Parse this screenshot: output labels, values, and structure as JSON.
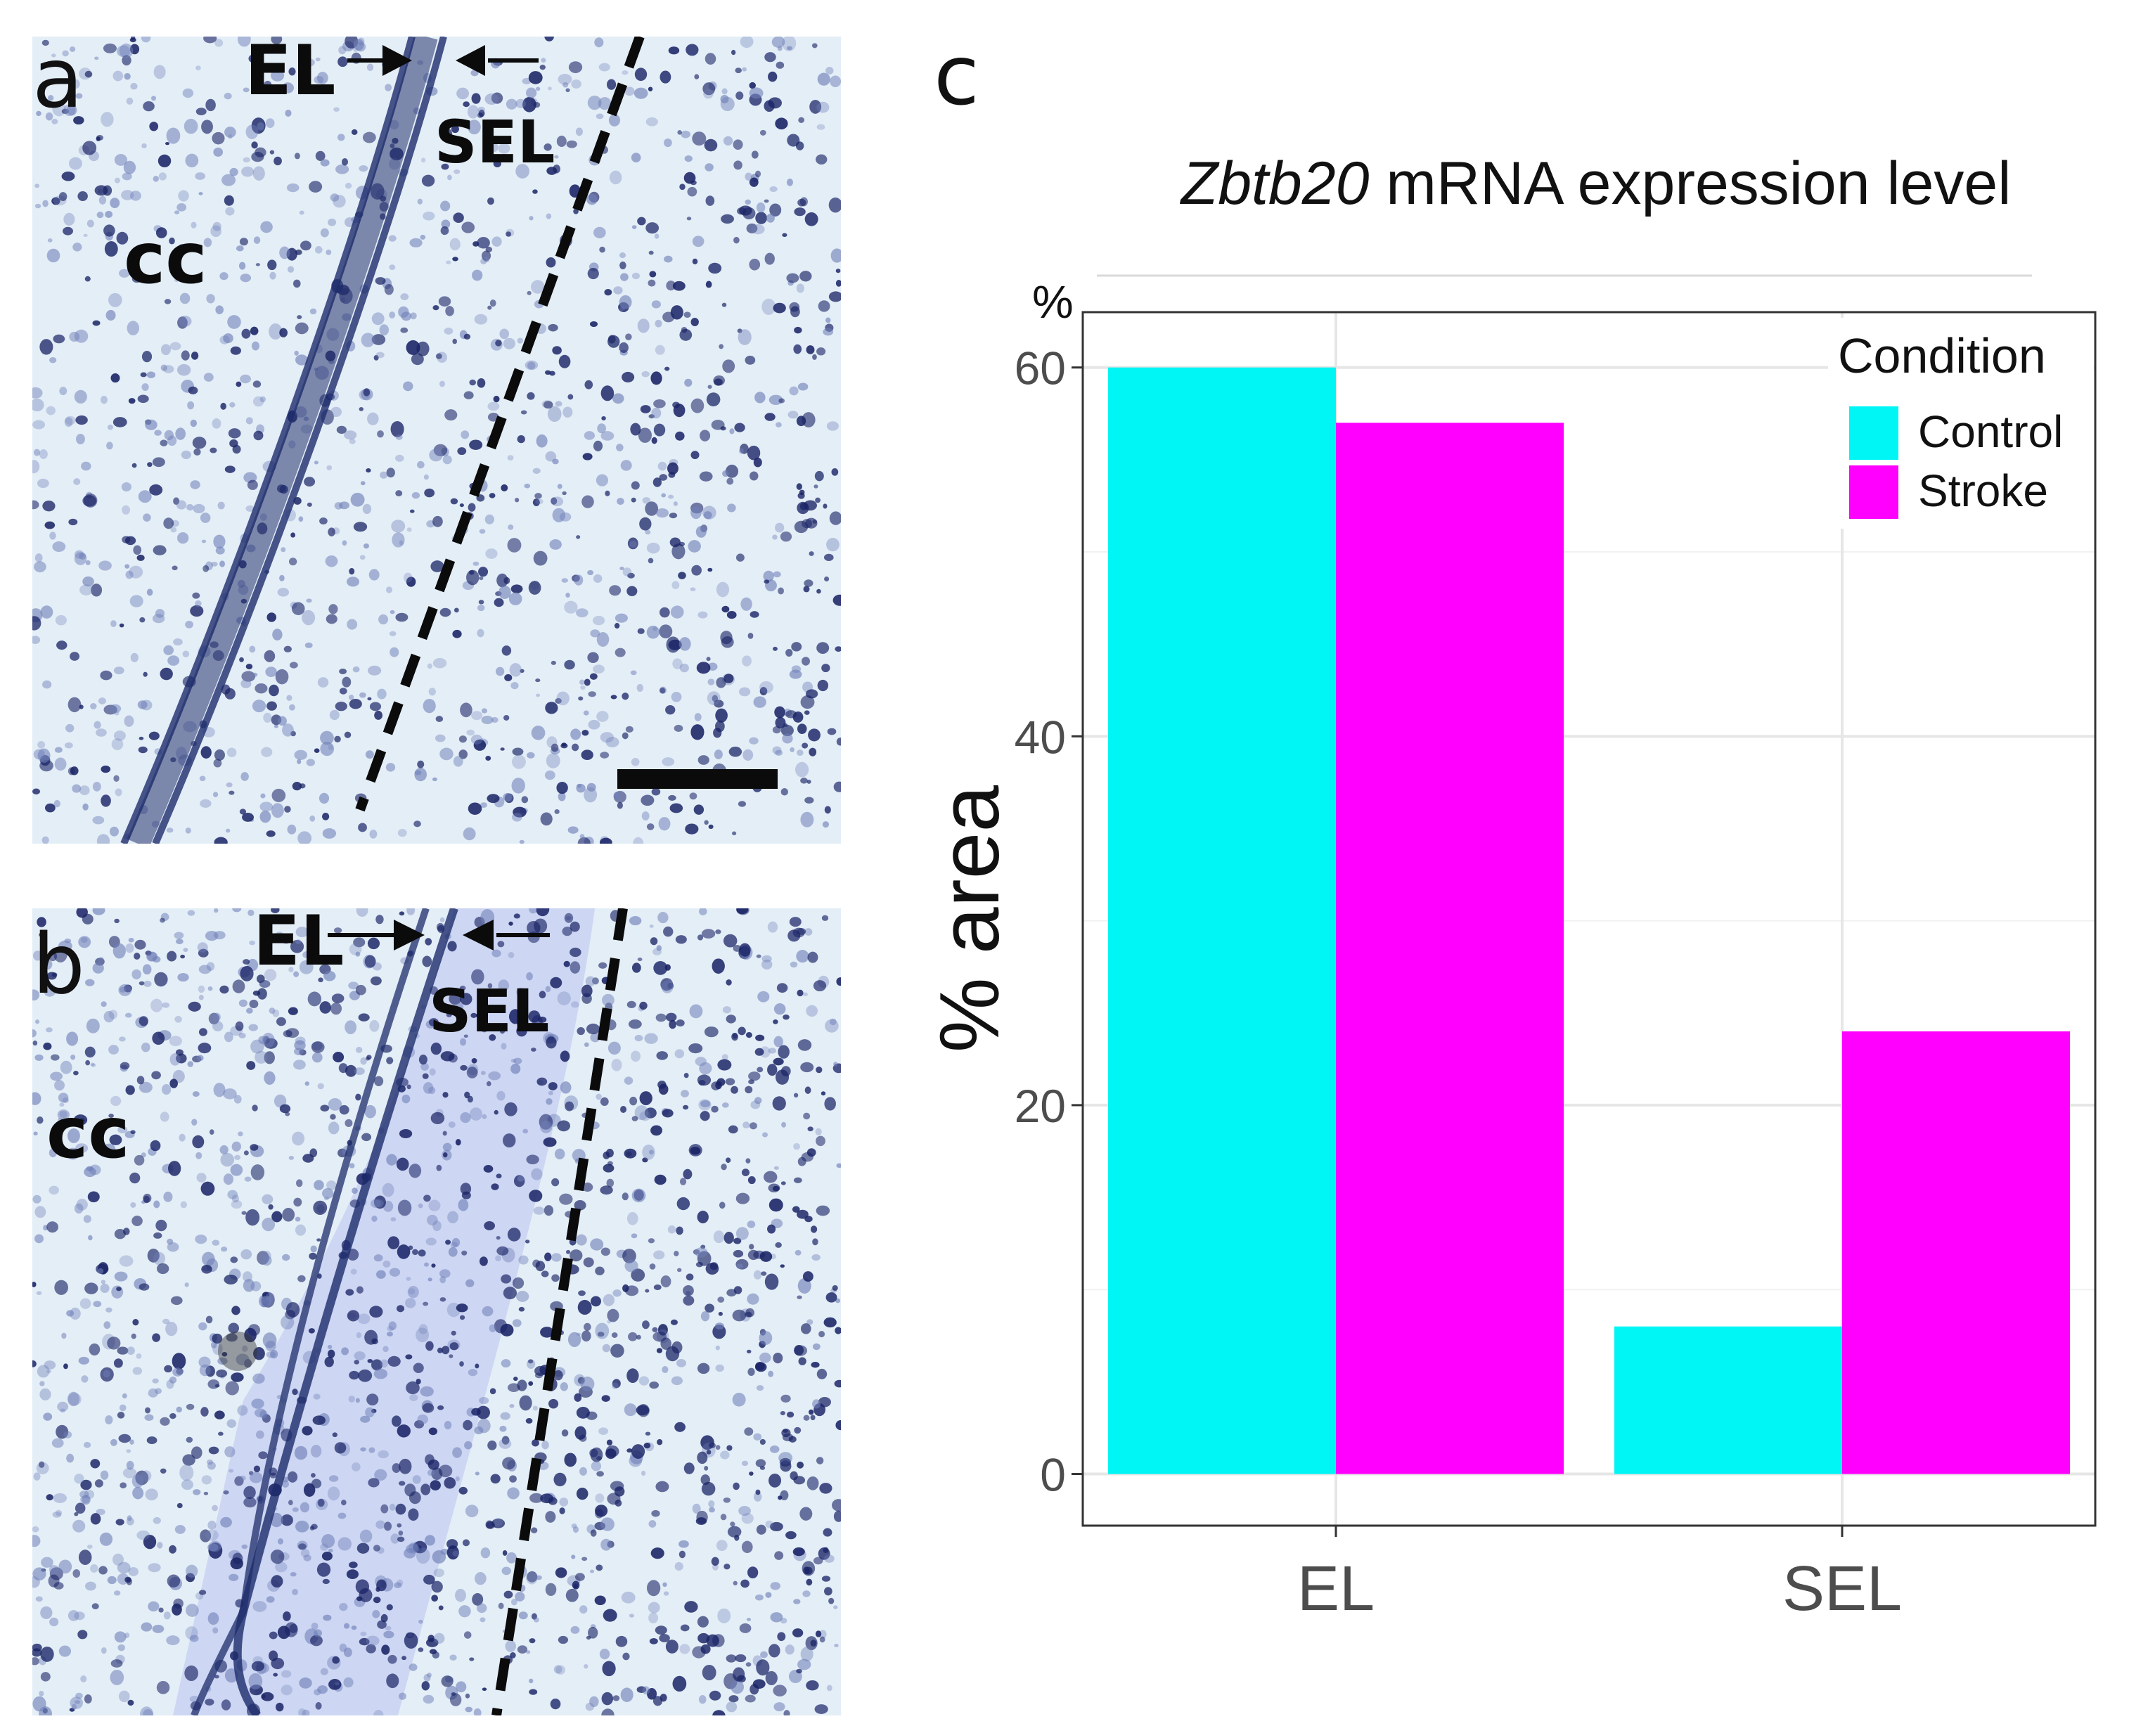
{
  "panels": {
    "a": {
      "letter": "a",
      "labels": {
        "el": "EL",
        "sel": "SEL",
        "cc": "cc"
      }
    },
    "b": {
      "letter": "b",
      "labels": {
        "el": "EL",
        "sel": "SEL",
        "cc": "cc"
      }
    },
    "c": {
      "letter": "c"
    }
  },
  "colors": {
    "control": "#00f5f5",
    "stroke": "#ff00ff",
    "tissue_bg": "#e4eef7",
    "stain": "#1d2c6b"
  },
  "chart_data": {
    "type": "bar",
    "title_italic": "Zbtb20",
    "title_rest": " mRNA expression level",
    "xlabel": "",
    "ylabel": "% area",
    "yunit": "%",
    "categories": [
      "EL",
      "SEL"
    ],
    "series": [
      {
        "name": "Control",
        "values": [
          60,
          8
        ]
      },
      {
        "name": "Stroke",
        "values": [
          57,
          24
        ]
      }
    ],
    "ylim": [
      -2.8,
      63
    ],
    "yticks": [
      0,
      20,
      40,
      60
    ],
    "grid": true,
    "legend": {
      "title": "Condition",
      "placement": "top-right"
    }
  }
}
